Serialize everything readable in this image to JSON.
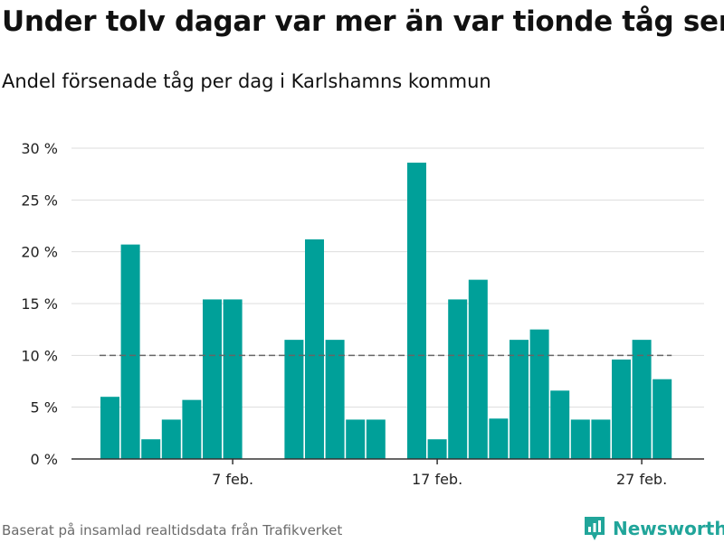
{
  "header": {
    "title": "Under tolv dagar var mer än var tionde tåg sent",
    "subtitle": "Andel försenade tåg per dag i Karlshamns kommun"
  },
  "footer": {
    "source": "Baserat på insamlad realtidsdata från Trafikverket"
  },
  "brand": {
    "name": "Newsworthy",
    "color": "#21a59a"
  },
  "chart_data": {
    "type": "bar",
    "title": "Under tolv dagar var mer än var tionde tåg sent",
    "subtitle": "Andel försenade tåg per dag i Karlshamns kommun",
    "xlabel": "",
    "ylabel": "",
    "ylim": [
      0,
      30
    ],
    "yticks": [
      0,
      5,
      10,
      15,
      20,
      25,
      30
    ],
    "ytick_labels": [
      "0 %",
      "5 %",
      "10 %",
      "15 %",
      "20 %",
      "25 %",
      "30 %"
    ],
    "xticks": [
      {
        "day": 7,
        "label": "7 feb."
      },
      {
        "day": 17,
        "label": "17 feb."
      },
      {
        "day": 27,
        "label": "27 feb."
      }
    ],
    "grid": true,
    "bar_color": "#00a099",
    "reference_line": {
      "value": 10,
      "style": "dashed",
      "color": "#666666"
    },
    "days": [
      1,
      2,
      3,
      4,
      5,
      6,
      7,
      8,
      9,
      10,
      11,
      12,
      13,
      14,
      15,
      16,
      17,
      18,
      19,
      20,
      21,
      22,
      23,
      24,
      25,
      26,
      27,
      28
    ],
    "values": [
      6.0,
      20.7,
      1.9,
      3.8,
      5.7,
      15.4,
      15.4,
      null,
      null,
      11.5,
      21.2,
      11.5,
      3.8,
      3.8,
      null,
      28.6,
      1.9,
      15.4,
      17.3,
      3.9,
      11.5,
      12.5,
      6.6,
      3.8,
      3.8,
      9.6,
      11.5,
      7.7
    ]
  }
}
